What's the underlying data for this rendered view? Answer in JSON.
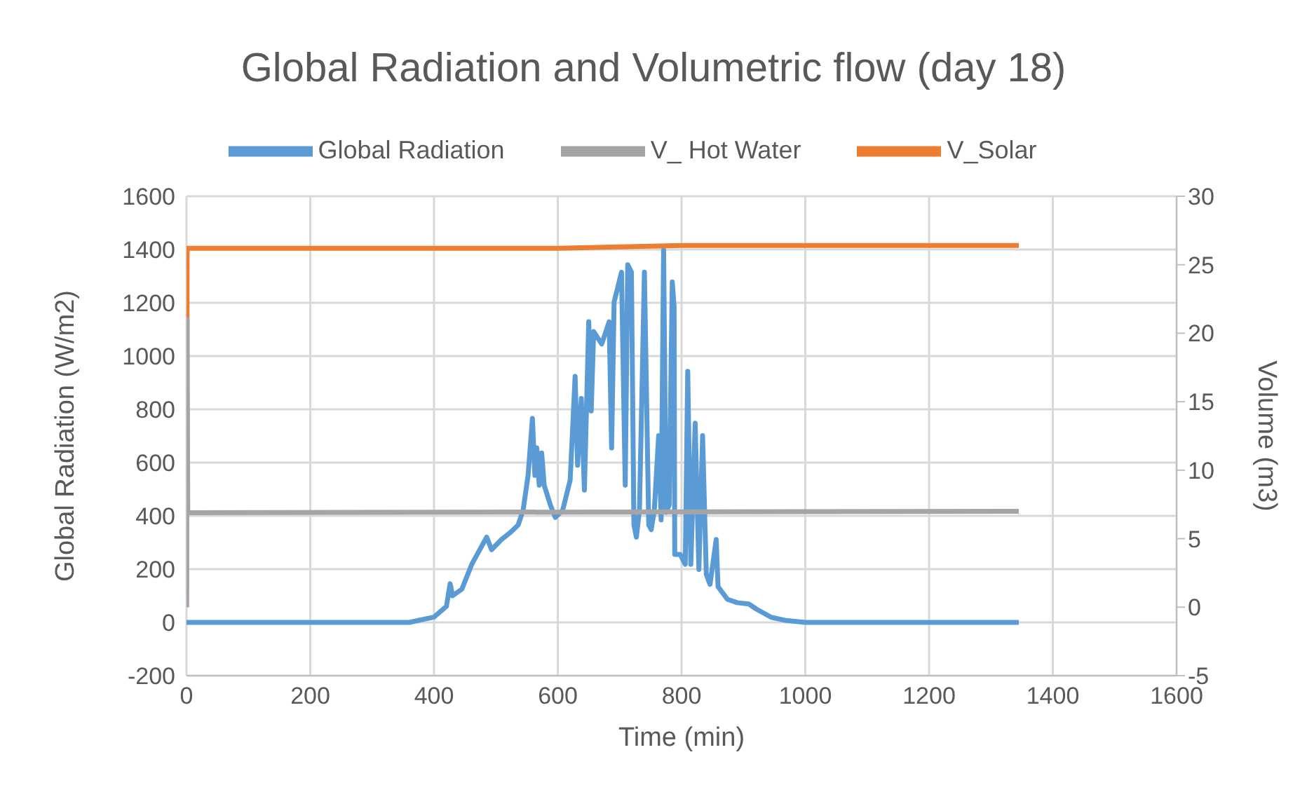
{
  "chart_data": {
    "type": "line",
    "title": "Global Radiation and Volumetric flow (day 18)",
    "xlabel": "Time (min)",
    "ylabel": "Global Radiation (W/m2)",
    "y2label": "Volume (m3)",
    "xlim": [
      0,
      1600
    ],
    "xticks": [
      0,
      200,
      400,
      600,
      800,
      1000,
      1200,
      1400,
      1600
    ],
    "ylim": [
      -200,
      1600
    ],
    "yticks": [
      -200,
      0,
      200,
      400,
      600,
      800,
      1000,
      1200,
      1400,
      1600
    ],
    "y2lim": [
      -5,
      30
    ],
    "y2ticks": [
      -5,
      0,
      5,
      10,
      15,
      20,
      25,
      30
    ],
    "grid": true,
    "legend": "top",
    "series": [
      {
        "name": "Global Radiation",
        "color": "#5b9bd5",
        "x": [
          0,
          360,
          400,
          420,
          426,
          430,
          445,
          461,
          485,
          493,
          509,
          524,
          536,
          544,
          552,
          559,
          563,
          566,
          570,
          574,
          578,
          588,
          596,
          608,
          620,
          628,
          632,
          638,
          643,
          650,
          654,
          658,
          671,
          683,
          687,
          691,
          703,
          709,
          713,
          719,
          723,
          727,
          732,
          740,
          747,
          751,
          756,
          763,
          767,
          771,
          775,
          780,
          785,
          788,
          789,
          798,
          806,
          810,
          815,
          822,
          828,
          834,
          840,
          846,
          856,
          859,
          874,
          890,
          909,
          921,
          945,
          969,
          1000,
          1345
        ],
        "values": [
          0,
          0,
          20,
          60,
          145,
          100,
          125,
          218,
          320,
          273,
          311,
          339,
          366,
          422,
          552,
          766,
          552,
          655,
          515,
          636,
          515,
          441,
          394,
          422,
          534,
          924,
          590,
          841,
          497,
          1129,
          794,
          1092,
          1045,
          1129,
          655,
          1203,
          1315,
          515,
          1343,
          1315,
          366,
          320,
          422,
          1315,
          366,
          348,
          422,
          701,
          385,
          1399,
          413,
          441,
          1278,
          1185,
          255,
          255,
          218,
          943,
          218,
          748,
          199,
          701,
          180,
          143,
          311,
          134,
          87,
          74,
          69,
          50,
          19,
          7,
          0,
          0
        ]
      },
      {
        "name": "V_Solar",
        "color": "#ed7d31",
        "axis": "y2",
        "x": [
          0,
          1,
          50,
          600,
          800,
          1345
        ],
        "values": [
          0,
          26.2,
          26.2,
          26.2,
          26.4,
          26.4
        ]
      },
      {
        "name": "V_ Hot Water",
        "color": "#a5a5a5",
        "axis": "y2",
        "x": [
          0,
          1,
          2,
          1345
        ],
        "values": [
          0,
          21,
          6.9,
          7.0
        ]
      }
    ]
  }
}
